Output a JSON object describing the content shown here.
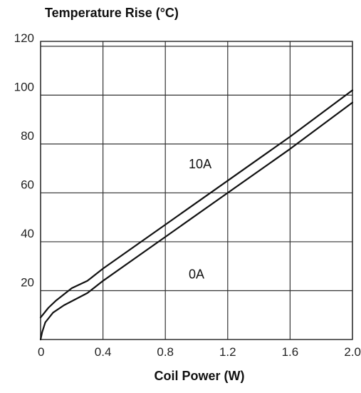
{
  "chart_data": {
    "type": "line",
    "title": "Temperature Rise (°C)",
    "xlabel": "Coil Power (W)",
    "ylabel": "",
    "xlim": [
      0,
      2.0
    ],
    "ylim": [
      0,
      122
    ],
    "grid": true,
    "x_ticks": [
      "0",
      "0.4",
      "0.8",
      "1.2",
      "1.6",
      "2.0"
    ],
    "y_ticks": [
      {
        "label": "20",
        "value": 20
      },
      {
        "label": "40",
        "value": 40
      },
      {
        "label": "60",
        "value": 60
      },
      {
        "label": "80",
        "value": 80
      },
      {
        "label": "100",
        "value": 100
      },
      {
        "label": "120",
        "value": 120
      }
    ],
    "series": [
      {
        "name": "10A",
        "points": [
          [
            0,
            9
          ],
          [
            0.05,
            13
          ],
          [
            0.1,
            16
          ],
          [
            0.2,
            21
          ],
          [
            0.3,
            24
          ],
          [
            0.4,
            29
          ],
          [
            0.8,
            47
          ],
          [
            1.2,
            65
          ],
          [
            1.6,
            83
          ],
          [
            2.0,
            102
          ]
        ]
      },
      {
        "name": "0A",
        "points": [
          [
            0,
            0
          ],
          [
            0.01,
            3
          ],
          [
            0.03,
            7
          ],
          [
            0.08,
            11
          ],
          [
            0.15,
            14
          ],
          [
            0.3,
            19
          ],
          [
            0.4,
            24
          ],
          [
            0.8,
            42
          ],
          [
            1.2,
            60
          ],
          [
            1.6,
            78
          ],
          [
            2.0,
            97
          ]
        ]
      }
    ],
    "annotations": [
      {
        "text": "10A",
        "x": 0.95,
        "y": 70
      },
      {
        "text": "0A",
        "x": 0.95,
        "y": 25
      }
    ]
  }
}
